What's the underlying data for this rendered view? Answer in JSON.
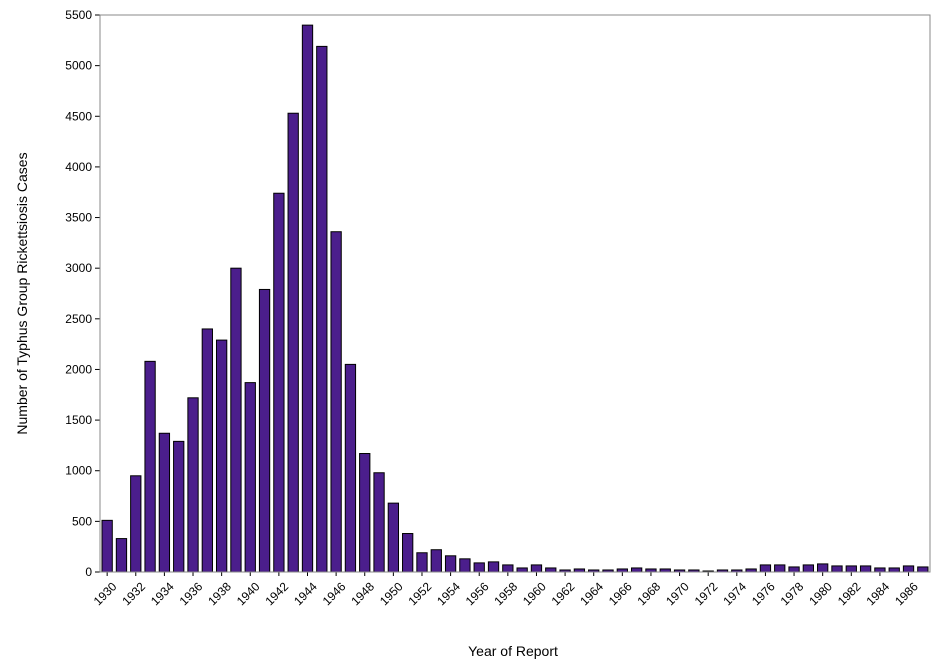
{
  "chart_data": {
    "type": "bar",
    "title": "",
    "xlabel": "Year of Report",
    "ylabel": "Number of Typhus Group Rickettsiosis Cases",
    "ylim": [
      0,
      5500
    ],
    "y_ticks": [
      0,
      500,
      1000,
      1500,
      2000,
      2500,
      3000,
      3500,
      4000,
      4500,
      5000,
      5500
    ],
    "x_tick_labels": [
      "1930",
      "1932",
      "1934",
      "1936",
      "1938",
      "1940",
      "1942",
      "1944",
      "1946",
      "1948",
      "1950",
      "1952",
      "1954",
      "1956",
      "1958",
      "1960",
      "1962",
      "1964",
      "1966",
      "1968",
      "1970",
      "1972",
      "1974",
      "1976",
      "1978",
      "1980",
      "1982",
      "1984",
      "1986"
    ],
    "grid": false,
    "legend": "none",
    "bar_color": "#4b1e8c",
    "categories": [
      "1930",
      "1931",
      "1932",
      "1933",
      "1934",
      "1935",
      "1936",
      "1937",
      "1938",
      "1939",
      "1940",
      "1941",
      "1942",
      "1943",
      "1944",
      "1945",
      "1946",
      "1947",
      "1948",
      "1949",
      "1950",
      "1951",
      "1952",
      "1953",
      "1954",
      "1955",
      "1956",
      "1957",
      "1958",
      "1959",
      "1960",
      "1961",
      "1962",
      "1963",
      "1964",
      "1965",
      "1966",
      "1967",
      "1968",
      "1969",
      "1970",
      "1971",
      "1972",
      "1973",
      "1974",
      "1975",
      "1976",
      "1977",
      "1978",
      "1979",
      "1980",
      "1981",
      "1982",
      "1983",
      "1984",
      "1985",
      "1986",
      "1987"
    ],
    "values": [
      510,
      330,
      950,
      2080,
      1370,
      1290,
      1720,
      2400,
      2290,
      3000,
      1870,
      2790,
      3740,
      4530,
      5400,
      5190,
      3360,
      2050,
      1170,
      980,
      680,
      380,
      190,
      220,
      160,
      130,
      90,
      100,
      70,
      40,
      70,
      40,
      20,
      30,
      20,
      20,
      30,
      40,
      30,
      30,
      20,
      20,
      10,
      20,
      20,
      30,
      70,
      70,
      50,
      70,
      80,
      60,
      60,
      60,
      40,
      40,
      60,
      50
    ]
  }
}
